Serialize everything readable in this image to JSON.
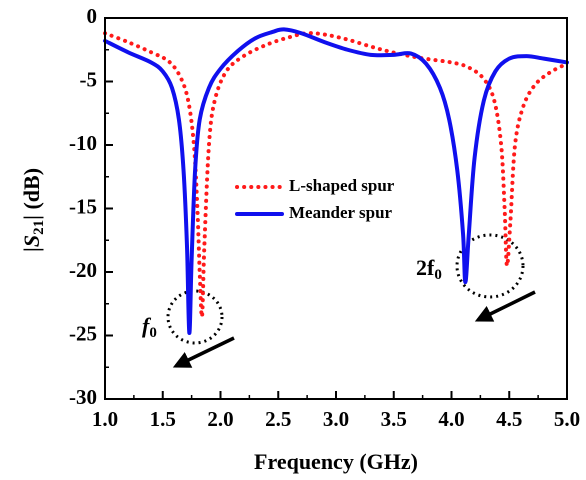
{
  "chart_data": {
    "type": "line",
    "xlabel": "Frequency (GHz)",
    "ylabel": {
      "pre": "|",
      "italic": "S",
      "sub": "21",
      "post": "| (dB)"
    },
    "xlim": [
      1,
      5
    ],
    "ylim": [
      -30,
      0
    ],
    "xticks": [
      {
        "value": 1,
        "label": "1.0"
      },
      1.5,
      {
        "value": 2,
        "label": "2.0"
      },
      2.5,
      {
        "value": 3,
        "label": "3.0"
      },
      3.5,
      {
        "value": 4,
        "label": "4.0"
      },
      4.5,
      {
        "value": 5,
        "label": "5.0"
      }
    ],
    "yticks": [
      0,
      -5,
      -10,
      -15,
      -20,
      -25,
      -30
    ],
    "series": [
      {
        "name": "L-shaped spur",
        "color": "#ff1a1a",
        "style": "dotted",
        "x": [
          1.0,
          1.2,
          1.4,
          1.55,
          1.65,
          1.72,
          1.77,
          1.8,
          1.82,
          1.84,
          1.86,
          1.9,
          1.95,
          2.05,
          2.2,
          2.4,
          2.6,
          2.75,
          2.9,
          3.1,
          3.4,
          3.7,
          4.0,
          4.15,
          4.28,
          4.37,
          4.43,
          4.46,
          4.48,
          4.51,
          4.55,
          4.62,
          4.72,
          4.85,
          5.0
        ],
        "values": [
          -1.2,
          -1.9,
          -2.7,
          -3.4,
          -4.6,
          -6.5,
          -10,
          -15,
          -20,
          -23.5,
          -18,
          -10,
          -6.5,
          -4.2,
          -3,
          -2.1,
          -1.5,
          -1.2,
          -1.3,
          -1.7,
          -2.5,
          -3.1,
          -3.5,
          -3.9,
          -4.8,
          -6.5,
          -10,
          -15,
          -19.5,
          -16,
          -10,
          -7,
          -5.3,
          -4.3,
          -3.6
        ]
      },
      {
        "name": "Meander spur",
        "color": "#1010ee",
        "style": "solid",
        "x": [
          1.0,
          1.2,
          1.4,
          1.5,
          1.58,
          1.64,
          1.68,
          1.71,
          1.73,
          1.75,
          1.78,
          1.82,
          1.9,
          2.0,
          2.15,
          2.3,
          2.45,
          2.55,
          2.7,
          2.9,
          3.1,
          3.3,
          3.5,
          3.65,
          3.78,
          3.9,
          3.98,
          4.05,
          4.1,
          4.12,
          4.15,
          4.2,
          4.28,
          4.38,
          4.5,
          4.65,
          4.8,
          5.0
        ],
        "values": [
          -1.8,
          -2.7,
          -3.5,
          -4.2,
          -5.5,
          -8,
          -12,
          -18,
          -24.8,
          -19,
          -12,
          -8,
          -5.5,
          -4,
          -2.6,
          -1.6,
          -1.1,
          -0.9,
          -1.2,
          -1.9,
          -2.5,
          -2.9,
          -2.9,
          -2.8,
          -3.6,
          -5.5,
          -8,
          -12,
          -17,
          -20.8,
          -17,
          -11,
          -6.5,
          -4.2,
          -3.2,
          -3.0,
          -3.2,
          -3.5
        ]
      }
    ],
    "annotations": [
      {
        "text": "f",
        "sub": "0"
      },
      {
        "text": "2f",
        "sub": "0"
      }
    ]
  }
}
